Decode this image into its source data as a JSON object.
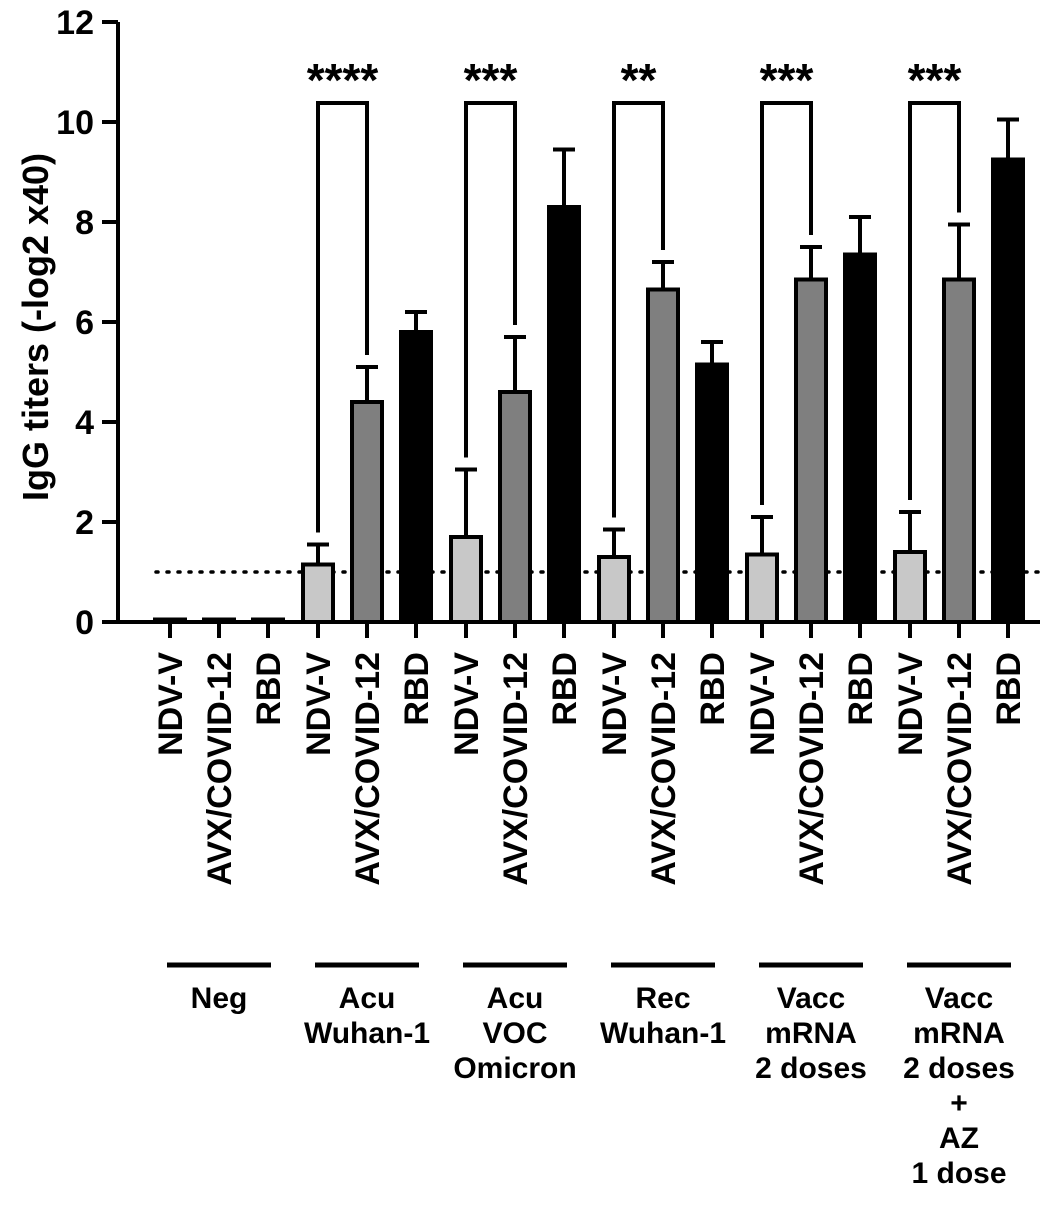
{
  "chart_data": {
    "type": "bar",
    "title": "",
    "xlabel": "",
    "ylabel": "IgG titers (-log2 x40)",
    "ylim": [
      0,
      12
    ],
    "yticks": [
      0,
      2,
      4,
      6,
      8,
      10,
      12
    ],
    "reference_line": {
      "y": 1,
      "style": "dotted"
    },
    "categories": [
      "NDV-V",
      "AVX/COVID-12",
      "RBD"
    ],
    "bar_colors": {
      "NDV-V": "#c8c8c8",
      "AVX/COVID-12": "#7f7f7f",
      "RBD": "#000000"
    },
    "groups": [
      {
        "lines": [
          "Neg"
        ],
        "values": [
          0.05,
          0.05,
          0.05
        ],
        "errors": [
          0,
          0,
          0
        ],
        "significance": null
      },
      {
        "lines": [
          "Acu",
          "Wuhan-1"
        ],
        "values": [
          1.15,
          4.4,
          5.8
        ],
        "errors": [
          0.4,
          0.7,
          0.4
        ],
        "significance": "****"
      },
      {
        "lines": [
          "Acu",
          "VOC",
          "Omicron"
        ],
        "values": [
          1.7,
          4.6,
          8.3
        ],
        "errors": [
          1.35,
          1.1,
          1.15
        ],
        "significance": "***"
      },
      {
        "lines": [
          "Rec",
          "Wuhan-1"
        ],
        "values": [
          1.3,
          6.65,
          5.15
        ],
        "errors": [
          0.55,
          0.55,
          0.45
        ],
        "significance": "**"
      },
      {
        "lines": [
          "Vacc",
          "mRNA",
          "2 doses"
        ],
        "values": [
          1.35,
          6.85,
          7.35
        ],
        "errors": [
          0.75,
          0.65,
          0.75
        ],
        "significance": "***"
      },
      {
        "lines": [
          "Vacc",
          "mRNA",
          "2 doses",
          "+",
          "AZ",
          "1 dose"
        ],
        "values": [
          1.4,
          6.85,
          9.25
        ],
        "errors": [
          0.8,
          1.1,
          0.8
        ],
        "significance": "***"
      }
    ]
  }
}
